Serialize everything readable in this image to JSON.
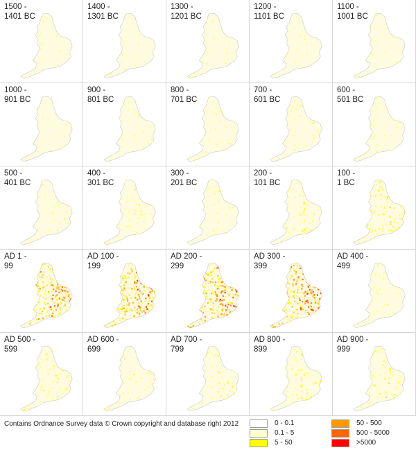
{
  "panels": [
    {
      "label": "1500 -\n1401 BC",
      "intensity": 0.06
    },
    {
      "label": "1400 -\n1301 BC",
      "intensity": 0.07
    },
    {
      "label": "1300 -\n1201 BC",
      "intensity": 0.06
    },
    {
      "label": "1200 -\n1101 BC",
      "intensity": 0.08
    },
    {
      "label": "1100 -\n1001 BC",
      "intensity": 0.05
    },
    {
      "label": "1000 -\n901 BC",
      "intensity": 0.08
    },
    {
      "label": "900 -\n801 BC",
      "intensity": 0.1
    },
    {
      "label": "800 -\n701 BC",
      "intensity": 0.14
    },
    {
      "label": "700 -\n601 BC",
      "intensity": 0.14
    },
    {
      "label": "600 -\n501 BC",
      "intensity": 0.1
    },
    {
      "label": "500 -\n401 BC",
      "intensity": 0.12
    },
    {
      "label": "400 -\n301 BC",
      "intensity": 0.16
    },
    {
      "label": "300 -\n201 BC",
      "intensity": 0.14
    },
    {
      "label": "200 -\n101 BC",
      "intensity": 0.2
    },
    {
      "label": "100 -\n1 BC",
      "intensity": 0.35
    },
    {
      "label": "AD 1 -\n99",
      "intensity": 0.75
    },
    {
      "label": "AD 100 -\n199",
      "intensity": 0.85
    },
    {
      "label": "AD 200 -\n299",
      "intensity": 0.85
    },
    {
      "label": "AD 300 -\n399",
      "intensity": 0.95
    },
    {
      "label": "AD 400 -\n499",
      "intensity": 0.18
    },
    {
      "label": "AD 500 -\n599",
      "intensity": 0.25
    },
    {
      "label": "AD 600 -\n699",
      "intensity": 0.16
    },
    {
      "label": "AD 700 -\n799",
      "intensity": 0.2
    },
    {
      "label": "AD 800 -\n899",
      "intensity": 0.25
    },
    {
      "label": "AD 900 -\n999",
      "intensity": 0.28
    }
  ],
  "credit": "Contains Ordnance Survey data © Crown copyright and database right 2012",
  "legend": [
    {
      "label": "0 - 0.1",
      "color": "#ffffff"
    },
    {
      "label": "0.1 - 5",
      "color": "#ffffcc"
    },
    {
      "label": "5 - 50",
      "color": "#ffff00"
    },
    {
      "label": "50 - 500",
      "color": "#ff9900"
    },
    {
      "label": "500 - 5000",
      "color": "#ff6600"
    },
    {
      "label": ">5000",
      "color": "#ff0000"
    }
  ]
}
